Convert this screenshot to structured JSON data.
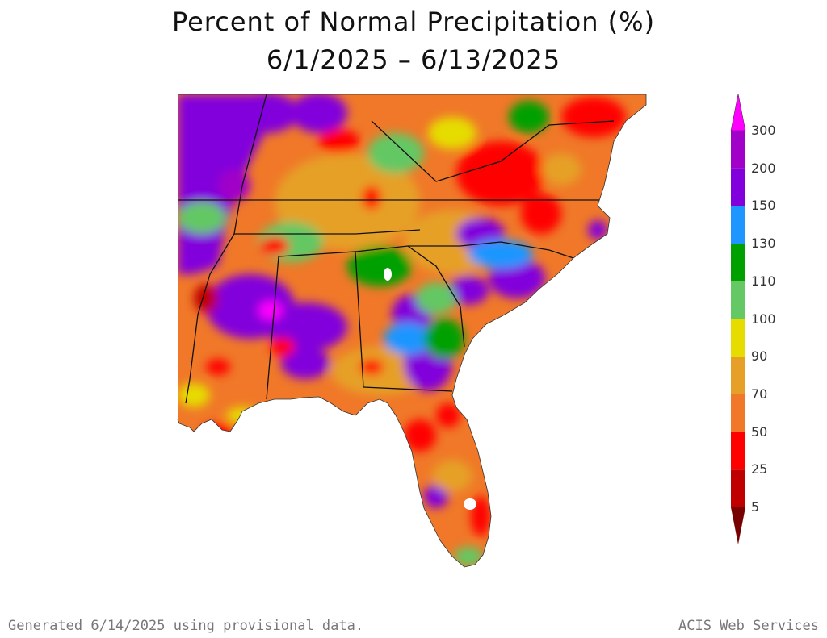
{
  "title": {
    "line1": "Percent of Normal Precipitation (%)",
    "line2": "6/1/2025 – 6/13/2025"
  },
  "legend": {
    "bins": [
      {
        "label": "300",
        "color": "#a000c8"
      },
      {
        "label": "200",
        "color": "#8200dc"
      },
      {
        "label": "150",
        "color": "#1e96ff"
      },
      {
        "label": "130",
        "color": "#00a000"
      },
      {
        "label": "110",
        "color": "#64c864"
      },
      {
        "label": "100",
        "color": "#e6dc00"
      },
      {
        "label": "90",
        "color": "#e6a028"
      },
      {
        "label": "70",
        "color": "#f07828"
      },
      {
        "label": "50",
        "color": "#ff0000"
      },
      {
        "label": "25",
        "color": "#c00000"
      },
      {
        "label": "5",
        "color": "#780000"
      }
    ],
    "top_color": "#ff00ff"
  },
  "footer": {
    "left": "Generated 6/14/2025 using provisional data.",
    "right": "ACIS Web Services"
  }
}
